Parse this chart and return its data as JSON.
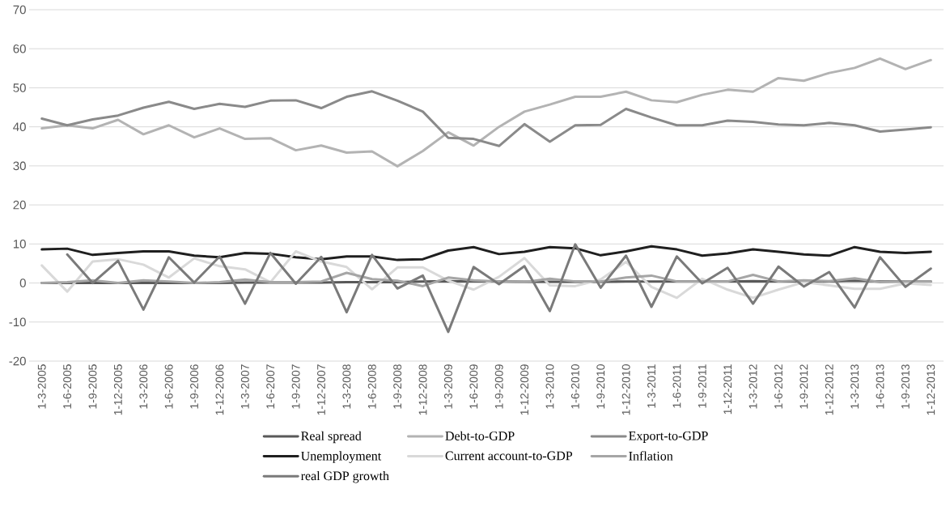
{
  "chart_data": {
    "type": "line",
    "categories": [
      "1-3-2005",
      "1-6-2005",
      "1-9-2005",
      "1-12-2005",
      "1-3-2006",
      "1-6-2006",
      "1-9-2006",
      "1-12-2006",
      "1-3-2007",
      "1-6-2007",
      "1-9-2007",
      "1-12-2007",
      "1-3-2008",
      "1-6-2008",
      "1-9-2008",
      "1-12-2008",
      "1-3-2009",
      "1-6-2009",
      "1-9-2009",
      "1-12-2009",
      "1-3-2010",
      "1-6-2010",
      "1-9-2010",
      "1-12-2010",
      "1-3-2011",
      "1-6-2011",
      "1-9-2011",
      "1-12-2011",
      "1-3-2012",
      "1-6-2012",
      "1-9-2012",
      "1-12-2012",
      "1-3-2013",
      "1-6-2013",
      "1-9-2013",
      "1-12-2013"
    ],
    "series": [
      {
        "name": "Real spread",
        "color": "#595959",
        "values": [
          0,
          0,
          0,
          0,
          0,
          0,
          0,
          0,
          0.1,
          0.1,
          0.1,
          0.1,
          0.2,
          0.2,
          0.2,
          0.4,
          0.5,
          0.4,
          0.4,
          0.3,
          0.3,
          0.3,
          0.3,
          0.4,
          0.4,
          0.4,
          0.4,
          0.4,
          0.5,
          0.4,
          0.4,
          0.4,
          0.6,
          0.4,
          0.4,
          0.4
        ]
      },
      {
        "name": "Debt-to-GDP",
        "color": "#b3b3b3",
        "values": [
          39.6,
          40.4,
          39.6,
          41.8,
          38.1,
          40.4,
          37.3,
          39.6,
          36.9,
          37.1,
          34.0,
          35.2,
          33.4,
          33.7,
          29.9,
          33.8,
          38.6,
          35.2,
          40.0,
          43.9,
          45.7,
          47.7,
          47.7,
          49.0,
          46.8,
          46.3,
          48.2,
          49.5,
          49.0,
          52.5,
          51.8,
          53.8,
          55.1,
          57.5,
          54.8,
          57.1
        ]
      },
      {
        "name": "Export-to-GDP",
        "color": "#8a8a8a",
        "values": [
          42.1,
          40.4,
          41.9,
          42.9,
          44.9,
          46.4,
          44.6,
          45.9,
          45.1,
          46.7,
          46.8,
          44.8,
          47.7,
          49.1,
          46.7,
          43.9,
          37.2,
          36.9,
          35.1,
          40.7,
          36.2,
          40.4,
          40.5,
          44.6,
          42.4,
          40.4,
          40.4,
          41.6,
          41.3,
          40.6,
          40.4,
          41.0,
          40.4,
          38.8,
          39.3,
          39.9
        ]
      },
      {
        "name": "Unemployment",
        "color": "#1f1f1f",
        "values": [
          8.6,
          8.8,
          7.2,
          7.7,
          8.1,
          8.1,
          7.0,
          6.6,
          7.7,
          7.5,
          6.6,
          6.1,
          6.8,
          6.8,
          5.9,
          6.1,
          8.3,
          9.2,
          7.4,
          8.0,
          9.2,
          8.9,
          7.1,
          8.1,
          9.4,
          8.6,
          7.0,
          7.6,
          8.6,
          8.0,
          7.3,
          7.0,
          9.2,
          8.0,
          7.7,
          8.0
        ]
      },
      {
        "name": "Current account-to-GDP",
        "color": "#d9d9d9",
        "values": [
          4.5,
          -2.2,
          5.5,
          6.1,
          4.7,
          1.4,
          6.3,
          4.3,
          3.5,
          0.2,
          8.1,
          5.5,
          4.1,
          -1.6,
          4.0,
          4.0,
          0.6,
          -1.7,
          1.6,
          6.4,
          -0.6,
          -0.8,
          0.9,
          5.4,
          -1.0,
          -3.8,
          1.1,
          -1.7,
          -3.8,
          -1.7,
          0.2,
          -0.6,
          -1.5,
          -1.5,
          -0.1,
          -0.5
        ]
      },
      {
        "name": "Inflation",
        "color": "#a6a6a6",
        "values": [
          0,
          0.2,
          0.7,
          0,
          0.7,
          0.4,
          0,
          0.2,
          0.9,
          0.2,
          0.2,
          0.4,
          2.6,
          1.0,
          0.6,
          -0.8,
          1.4,
          0.7,
          0.4,
          0.2,
          1.1,
          0.4,
          0.4,
          1.4,
          1.9,
          0.4,
          0.4,
          0.4,
          2.1,
          0.4,
          0.7,
          0.5,
          1.2,
          0.2,
          0.4,
          0.4
        ]
      },
      {
        "name": "real GDP growth",
        "color": "#7a7a7a",
        "values": [
          null,
          7.3,
          0,
          5.7,
          -6.8,
          6.6,
          0.1,
          6.8,
          -5.3,
          7.7,
          -0.2,
          6.7,
          -7.5,
          7.2,
          -1.4,
          1.9,
          -12.5,
          4.1,
          -0.3,
          4.3,
          -7.2,
          9.9,
          -1.2,
          7.0,
          -6.1,
          6.8,
          -0.1,
          3.9,
          -5.3,
          4.2,
          -0.9,
          2.8,
          -6.3,
          6.6,
          -1.0,
          3.7
        ]
      }
    ],
    "ylim": [
      -20,
      70
    ],
    "yticks": [
      -20,
      -10,
      0,
      10,
      20,
      30,
      40,
      50,
      60,
      70
    ],
    "grid": "y",
    "legend": "bottom",
    "marker": "none",
    "line_style": "solid"
  }
}
